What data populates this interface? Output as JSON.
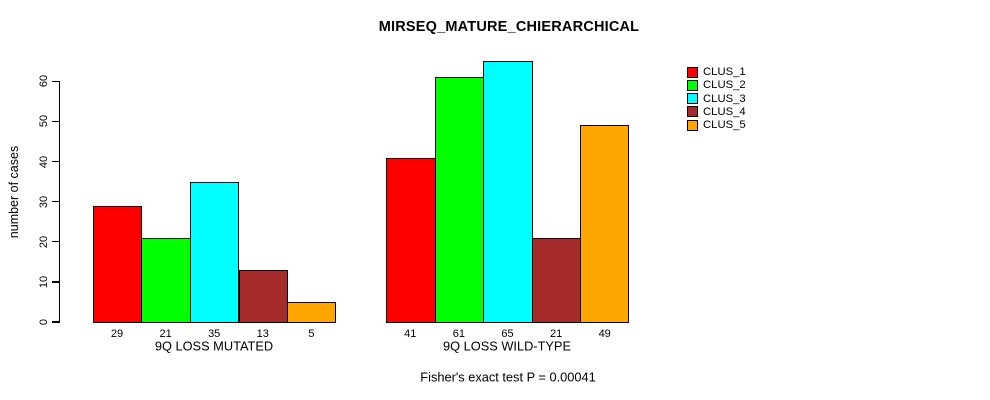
{
  "title": "MIRSEQ_MATURE_CHIERARCHICAL",
  "footer": "Fisher's exact test P = 0.00041",
  "y_axis": {
    "label": "number of cases",
    "ticks": [
      0,
      10,
      20,
      30,
      40,
      50,
      60
    ]
  },
  "legend": {
    "entries": [
      {
        "label": "CLUS_1",
        "color": "#ff0000"
      },
      {
        "label": "CLUS_2",
        "color": "#00ff00"
      },
      {
        "label": "CLUS_3",
        "color": "#00ffff"
      },
      {
        "label": "CLUS_4",
        "color": "#a52a2a"
      },
      {
        "label": "CLUS_5",
        "color": "#ffa500"
      }
    ]
  },
  "chart_data": {
    "type": "bar",
    "title": "MIRSEQ_MATURE_CHIERARCHICAL",
    "ylabel": "number of cases",
    "xlabel": "",
    "ylim": [
      0,
      65
    ],
    "yticks": [
      0,
      10,
      20,
      30,
      40,
      50,
      60
    ],
    "groups": [
      "9Q LOSS MUTATED",
      "9Q LOSS WILD-TYPE"
    ],
    "series": [
      {
        "name": "CLUS_1",
        "color": "#ff0000",
        "values": [
          29,
          41
        ]
      },
      {
        "name": "CLUS_2",
        "color": "#00ff00",
        "values": [
          21,
          61
        ]
      },
      {
        "name": "CLUS_3",
        "color": "#00ffff",
        "values": [
          35,
          65
        ]
      },
      {
        "name": "CLUS_4",
        "color": "#a52a2a",
        "values": [
          13,
          21
        ]
      },
      {
        "name": "CLUS_5",
        "color": "#ffa500",
        "values": [
          5,
          49
        ]
      }
    ],
    "bar_value_labels": true,
    "bar_border_color": "#000000",
    "annotation": "Fisher's exact test P = 0.00041",
    "legend_position": "top-right",
    "grid": false
  }
}
